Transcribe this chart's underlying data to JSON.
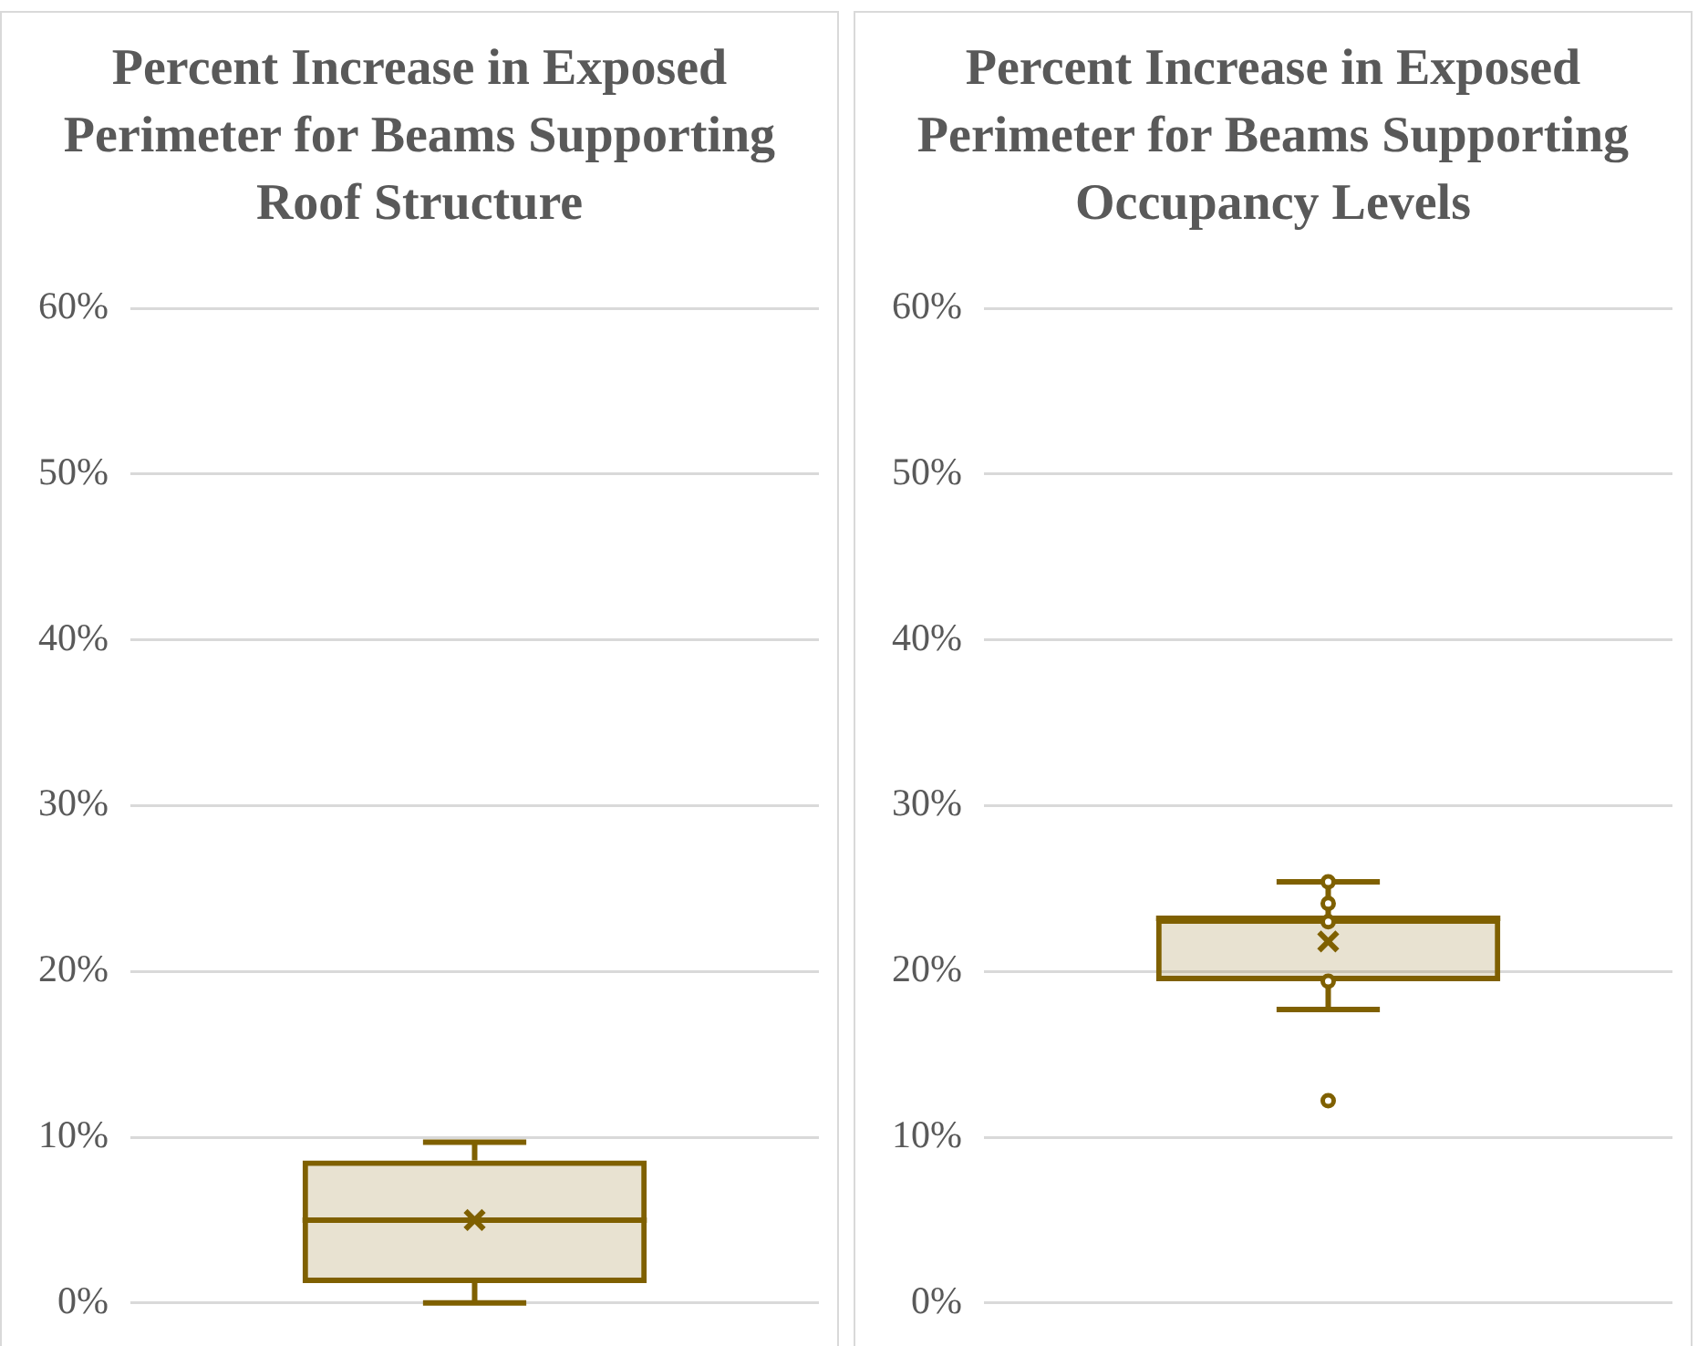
{
  "chart_data": [
    {
      "type": "box",
      "title": "Percent Increase in Exposed Perimeter for Beams Supporting Roof Structure",
      "categories": [
        null
      ],
      "series": [
        {
          "color": "#7f6000",
          "boxes": [
            {
              "low": 0,
              "q1": 1.2,
              "median": 5.0,
              "q3": 8.6,
              "high": 9.7,
              "mean": 5.0
            }
          ]
        }
      ],
      "ylim": [
        0,
        60
      ],
      "yticks": [
        {
          "value": 0,
          "label": "0%"
        },
        {
          "value": 10,
          "label": "10%"
        },
        {
          "value": 20,
          "label": "20%"
        },
        {
          "value": 30,
          "label": "30%"
        },
        {
          "value": 40,
          "label": "40%"
        },
        {
          "value": 50,
          "label": "50%"
        },
        {
          "value": 60,
          "label": "60%"
        }
      ],
      "grid": "y",
      "legend": false,
      "tick_labels": "y",
      "marker": "cross"
    },
    {
      "type": "box",
      "title": "Percent Increase in Exposed Perimeter for Beams Supporting Occupancy Levels",
      "categories": [
        null
      ],
      "series": [
        {
          "color": "#7f6000",
          "boxes": [
            {
              "low": 17.7,
              "q1": 19.4,
              "median": 23.2,
              "q3": 23.2,
              "high": 25.4,
              "mean": 21.8,
              "outliers": [
                12.2,
                19.4,
                23.0,
                24.1,
                25.4
              ]
            }
          ]
        }
      ],
      "ylim": [
        0,
        60
      ],
      "yticks": [
        {
          "value": 0,
          "label": "0%"
        },
        {
          "value": 10,
          "label": "10%"
        },
        {
          "value": 20,
          "label": "20%"
        },
        {
          "value": 30,
          "label": "30%"
        },
        {
          "value": 40,
          "label": "40%"
        },
        {
          "value": 50,
          "label": "50%"
        },
        {
          "value": 60,
          "label": "60%"
        }
      ],
      "grid": "y",
      "legend": false,
      "tick_labels": "y",
      "marker": "cross"
    }
  ]
}
